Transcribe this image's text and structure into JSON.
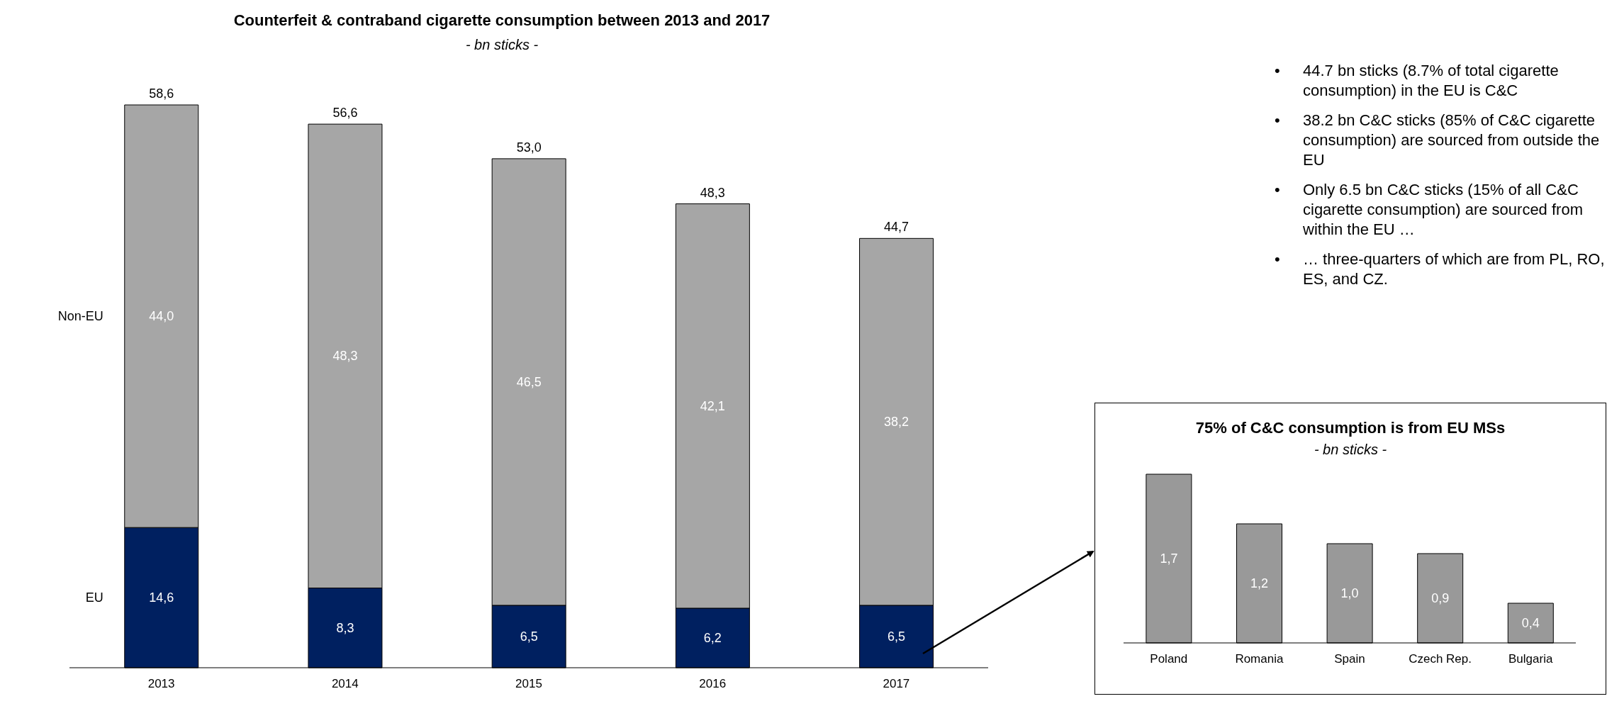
{
  "chart_data": [
    {
      "type": "bar",
      "title": "Counterfeit & contraband cigarette consumption between 2013 and 2017",
      "subtitle": "- bn sticks -",
      "categories": [
        "2013",
        "2014",
        "2015",
        "2016",
        "2017"
      ],
      "stacked": true,
      "legend": false,
      "series": [
        {
          "name": "EU",
          "color": "#002060",
          "values": [
            14.6,
            8.3,
            6.5,
            6.2,
            6.5
          ],
          "value_labels": [
            "14,6",
            "8,3",
            "6,5",
            "6,2",
            "6,5"
          ]
        },
        {
          "name": "Non-EU",
          "color": "#a6a6a6",
          "values": [
            44.0,
            48.3,
            46.5,
            42.1,
            38.2
          ],
          "value_labels": [
            "44,0",
            "48,3",
            "46,5",
            "42,1",
            "38,2"
          ]
        }
      ],
      "totals": [
        "58,6",
        "56,6",
        "53,0",
        "48,3",
        "44,7"
      ]
    },
    {
      "type": "other",
      "annotations": [
        "•\t44.7 bn sticks (8.7% of total cigarette consumption) in the EU is C&C",
        "•\t38.2 bn C&C sticks (85% of C&C cigarette consumption) are sourced from outside the EU",
        "•\tOnly 6.5 bn C&C sticks (15% of all C&C cigarette consumption) are sourced from within the EU …",
        "•\t… three-quarters of which are from PL, RO, ES, and CZ."
      ]
    },
    {
      "type": "bar",
      "title": "75% of C&C consumption is from EU MSs",
      "subtitle": "- bn sticks -",
      "categories": [
        "Poland",
        "Romania",
        "Spain",
        "Czech Rep.",
        "Bulgaria"
      ],
      "legend": false,
      "series": [
        {
          "color": "#999999",
          "values": [
            1.7,
            1.2,
            1.0,
            0.9,
            0.4
          ],
          "value_labels": [
            "1,7",
            "1,2",
            "1,0",
            "0,9",
            "0,4"
          ]
        }
      ]
    }
  ]
}
